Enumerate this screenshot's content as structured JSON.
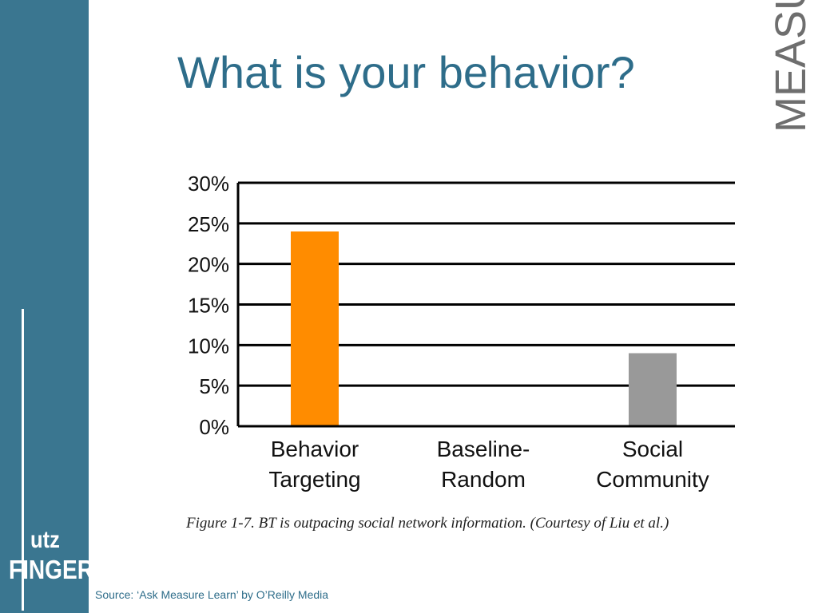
{
  "slide": {
    "title": "What is your behavior?",
    "side_word": "MEASU",
    "source": "Source: ‘Ask Measure Learn’ by O’Reilly Media"
  },
  "logo": {
    "top": "utz",
    "bottom": "FINGER"
  },
  "colors": {
    "sidebar": "#3a7690",
    "title": "#2e6d8a",
    "bar_bt": "#ff8c00",
    "bar_social": "#999999"
  },
  "chart_data": {
    "type": "bar",
    "categories": [
      [
        "Behavior",
        "Targeting"
      ],
      [
        "Baseline-",
        "Random"
      ],
      [
        "Social",
        "Community"
      ]
    ],
    "values": [
      24,
      0,
      9
    ],
    "bar_colors": [
      "#ff8c00",
      "#999999",
      "#999999"
    ],
    "y_ticks": [
      "0%",
      "5%",
      "10%",
      "15%",
      "20%",
      "25%",
      "30%"
    ],
    "ylim": [
      0,
      30
    ],
    "grid": true,
    "caption": "Figure 1-7. BT is outpacing social network information. (Courtesy of Liu et al.)"
  }
}
